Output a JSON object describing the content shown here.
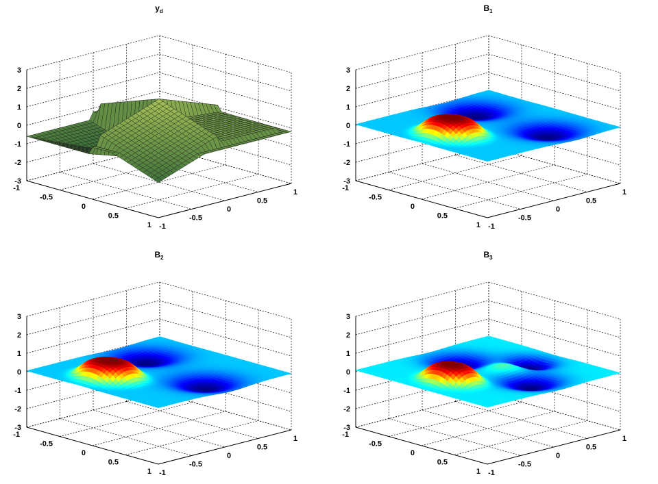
{
  "figure": {
    "panels": [
      {
        "title": "y",
        "subscript": "d",
        "surface": "yd",
        "colormap": "jet",
        "edges": "dark"
      },
      {
        "title": "B",
        "subscript": "1",
        "surface": "B1",
        "colormap": "jet",
        "edges": "none"
      },
      {
        "title": "B",
        "subscript": "2",
        "surface": "B2",
        "colormap": "jet",
        "edges": "none"
      },
      {
        "title": "B",
        "subscript": "3",
        "surface": "B3",
        "colormap": "jet",
        "edges": "none"
      }
    ]
  },
  "chart_data": [
    {
      "type": "surface",
      "title": "yd",
      "xlim": [
        -1,
        1
      ],
      "ylim": [
        -1,
        1
      ],
      "zlim": [
        -3,
        3
      ],
      "xticks": [
        "-1",
        "-0.5",
        "0",
        "0.5",
        "1"
      ],
      "yticks": [
        "-1",
        "-0.5",
        "0",
        "0.5",
        "1"
      ],
      "zticks": [
        "-3",
        "-2",
        "-1",
        "0",
        "1",
        "2",
        "3"
      ],
      "grid": true,
      "z_range_observed": [
        -2.7,
        1.5
      ]
    },
    {
      "type": "surface",
      "title": "B1",
      "xlim": [
        -1,
        1
      ],
      "ylim": [
        -1,
        1
      ],
      "zlim": [
        -3,
        3
      ],
      "xticks": [
        "-1",
        "-0.5",
        "0",
        "0.5",
        "1"
      ],
      "yticks": [
        "-1",
        "-0.5",
        "0",
        "0.5",
        "1"
      ],
      "zticks": [
        "-3",
        "-2",
        "-1",
        "0",
        "1",
        "2",
        "3"
      ],
      "grid": true,
      "z_range_observed": [
        -0.2,
        0.2
      ]
    },
    {
      "type": "surface",
      "title": "B2",
      "xlim": [
        -1,
        1
      ],
      "ylim": [
        -1,
        1
      ],
      "zlim": [
        -3,
        3
      ],
      "xticks": [
        "-1",
        "-0.5",
        "0",
        "0.5",
        "1"
      ],
      "yticks": [
        "-1",
        "-0.5",
        "0",
        "0.5",
        "1"
      ],
      "zticks": [
        "-3",
        "-2",
        "-1",
        "0",
        "1",
        "2",
        "3"
      ],
      "grid": true,
      "z_range_observed": [
        -0.2,
        0.2
      ]
    },
    {
      "type": "surface",
      "title": "B3",
      "xlim": [
        -1,
        1
      ],
      "ylim": [
        -1,
        1
      ],
      "zlim": [
        -3,
        3
      ],
      "xticks": [
        "-1",
        "-0.5",
        "0",
        "0.5",
        "1"
      ],
      "yticks": [
        "-1",
        "-0.5",
        "0",
        "0.5",
        "1"
      ],
      "zticks": [
        "-3",
        "-2",
        "-1",
        "0",
        "1",
        "2",
        "3"
      ],
      "grid": true,
      "z_range_observed": [
        -0.2,
        0.2
      ]
    }
  ]
}
